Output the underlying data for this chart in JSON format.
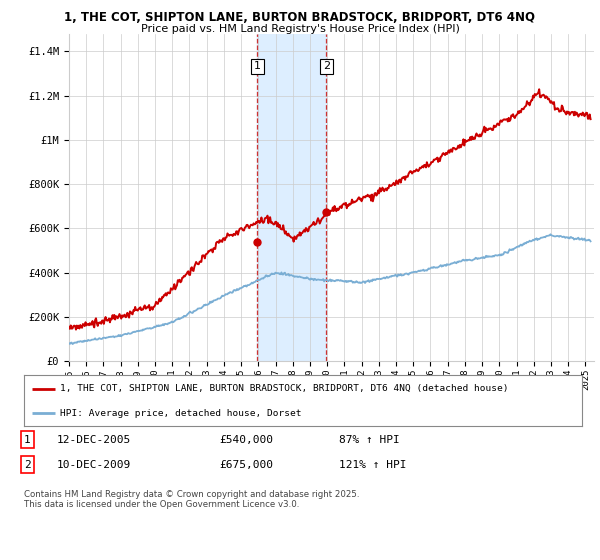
{
  "title1": "1, THE COT, SHIPTON LANE, BURTON BRADSTOCK, BRIDPORT, DT6 4NQ",
  "title2": "Price paid vs. HM Land Registry's House Price Index (HPI)",
  "ylabel_ticks": [
    "£0",
    "£200K",
    "£400K",
    "£600K",
    "£800K",
    "£1M",
    "£1.2M",
    "£1.4M"
  ],
  "ytick_vals": [
    0,
    200000,
    400000,
    600000,
    800000,
    1000000,
    1200000,
    1400000
  ],
  "ylim": [
    0,
    1480000
  ],
  "xlim_start": 1995.0,
  "xlim_end": 2025.5,
  "background_color": "#ffffff",
  "grid_color": "#cccccc",
  "purchase1_date": 2005.95,
  "purchase1_price": 540000,
  "purchase2_date": 2009.95,
  "purchase2_price": 675000,
  "legend_line1": "1, THE COT, SHIPTON LANE, BURTON BRADSTOCK, BRIDPORT, DT6 4NQ (detached house)",
  "legend_line2": "HPI: Average price, detached house, Dorset",
  "table_row1": [
    "1",
    "12-DEC-2005",
    "£540,000",
    "87% ↑ HPI"
  ],
  "table_row2": [
    "2",
    "10-DEC-2009",
    "£675,000",
    "121% ↑ HPI"
  ],
  "footer": "Contains HM Land Registry data © Crown copyright and database right 2025.\nThis data is licensed under the Open Government Licence v3.0.",
  "red_color": "#cc0000",
  "blue_color": "#7aaed4",
  "shade_color": "#ddeeff",
  "xtick_years": [
    1995,
    1996,
    1997,
    1998,
    1999,
    2000,
    2001,
    2002,
    2003,
    2004,
    2005,
    2006,
    2007,
    2008,
    2009,
    2010,
    2011,
    2012,
    2013,
    2014,
    2015,
    2016,
    2017,
    2018,
    2019,
    2020,
    2021,
    2022,
    2023,
    2024,
    2025
  ]
}
